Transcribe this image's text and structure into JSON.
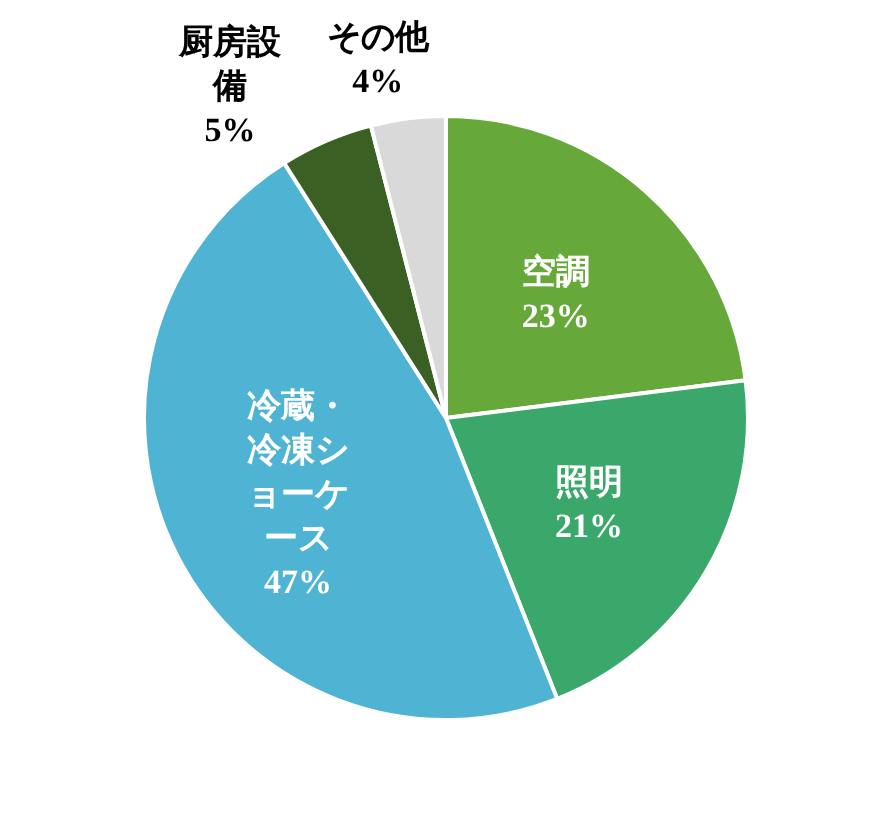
{
  "chart_data": {
    "type": "pie",
    "categories": [
      "空調",
      "照明",
      "冷蔵・冷凍ショーケース",
      "厨房設備",
      "その他"
    ],
    "values": [
      23,
      21,
      47,
      5,
      4
    ],
    "value_labels": [
      "23%",
      "21%",
      "47%",
      "5%",
      "4%"
    ],
    "colors": [
      "#67a83a",
      "#3aa76b",
      "#4fb3d3",
      "#3b6024",
      "#d9d9d9"
    ],
    "legend": false
  }
}
